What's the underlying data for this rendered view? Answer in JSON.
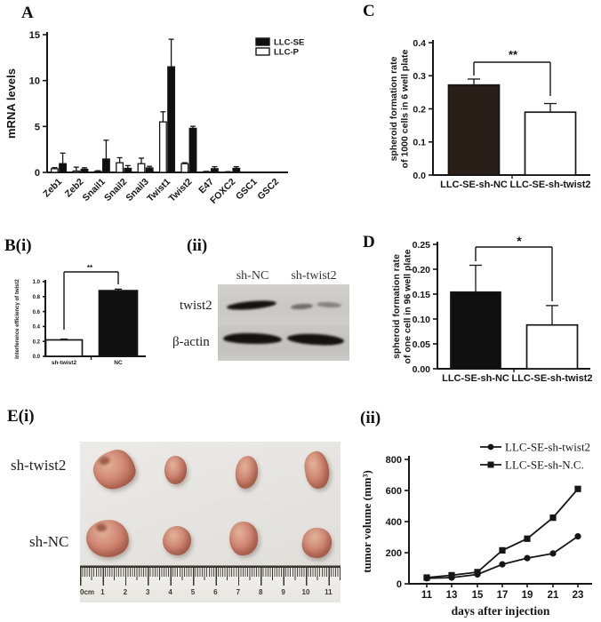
{
  "panels": {
    "A": {
      "label": "A"
    },
    "B_i": {
      "label": "B(i)"
    },
    "B_ii": {
      "label": "(ii)"
    },
    "C": {
      "label": "C"
    },
    "D": {
      "label": "D"
    },
    "E_i": {
      "label": "E(i)"
    },
    "E_ii": {
      "label": "(ii)"
    }
  },
  "colors": {
    "ink": "#161616",
    "dark_brown_bar": "#2a1e19",
    "blot_background": "#c9c8c4",
    "tumor_flesh": "#cf8773"
  },
  "blot": {
    "col_labels": [
      "sh-NC",
      "sh-twist2"
    ],
    "row_labels": [
      "twist2",
      "β-actin"
    ]
  },
  "photo": {
    "row_labels": [
      "sh-twist2",
      "sh-NC"
    ],
    "ruler_zero_label": "0cm",
    "ruler_numbers": [
      "1",
      "2",
      "3",
      "4",
      "5",
      "6",
      "7",
      "8",
      "9",
      "10",
      "11"
    ]
  },
  "chart_data": [
    {
      "id": "A",
      "type": "bar",
      "ylabel": "mRNA levels",
      "ylim": [
        0,
        15
      ],
      "yticks": [
        "0",
        "5",
        "10",
        "15"
      ],
      "categories": [
        "Zeb1",
        "Zeb2",
        "Snail1",
        "Snail2",
        "Snail3",
        "Twist1",
        "Twist2",
        "E47",
        "FOXC2",
        "GSC1",
        "GSC2"
      ],
      "series": [
        {
          "name": "LLC-P",
          "fill": "#ffffff",
          "values": [
            0.4,
            0.15,
            0.1,
            1.05,
            0.95,
            5.5,
            0.95,
            0.07,
            0.05,
            0,
            0
          ],
          "errors": [
            0.12,
            0.42,
            0.08,
            0.55,
            0.6,
            1.1,
            0.1,
            0.04,
            0.03,
            0,
            0
          ]
        },
        {
          "name": "LLC-SE",
          "fill": "#0f0f0f",
          "values": [
            0.95,
            0.34,
            1.45,
            0.44,
            0.48,
            11.5,
            4.8,
            0.4,
            0.44,
            0,
            0
          ],
          "errors": [
            1.15,
            0.16,
            2.05,
            0.3,
            0.18,
            3.0,
            0.22,
            0.22,
            0.18,
            0,
            0
          ]
        }
      ],
      "legend": [
        {
          "label": "LLC-SE",
          "fill": "#0f0f0f"
        },
        {
          "label": "LLC-P",
          "fill": "#ffffff"
        }
      ]
    },
    {
      "id": "B_i",
      "type": "bar",
      "ylabel": "Interference efficiency of twist2",
      "ylim": [
        0,
        1.0
      ],
      "yticks": [
        "0.0",
        "0.2",
        "0.4",
        "0.6",
        "0.8",
        "1.0"
      ],
      "categories": [
        "sh-twist2",
        "NC"
      ],
      "values": [
        0.22,
        0.88
      ],
      "errors": [
        0.01,
        0.02
      ],
      "fills": [
        "#ffffff",
        "#0f0f0f"
      ],
      "significance": "**"
    },
    {
      "id": "C",
      "type": "bar",
      "ylabel_lines": [
        "spheroid formation rate",
        "of 1000 cells in 6 well plate"
      ],
      "ylim": [
        0,
        0.4
      ],
      "yticks": [
        "0.0",
        "0.1",
        "0.2",
        "0.3",
        "0.4"
      ],
      "categories": [
        "LLC-SE-sh-NC",
        "LLC-SE-sh-twist2"
      ],
      "values": [
        0.272,
        0.19
      ],
      "errors": [
        0.018,
        0.026
      ],
      "fills": [
        "#2a1e19",
        "#ffffff"
      ],
      "significance": "**"
    },
    {
      "id": "D",
      "type": "bar",
      "ylabel_lines": [
        "spheroid formation rate",
        "of one cell in 96 well plate"
      ],
      "ylim": [
        0,
        0.25
      ],
      "yticks": [
        "0.00",
        "0.05",
        "0.10",
        "0.15",
        "0.20",
        "0.25"
      ],
      "categories": [
        "LLC-SE-sh-NC",
        "LLC-SE-sh-twist2"
      ],
      "values": [
        0.154,
        0.088
      ],
      "errors": [
        0.054,
        0.039
      ],
      "fills": [
        "#0f0f0f",
        "#ffffff"
      ],
      "significance": "*"
    },
    {
      "id": "E_ii",
      "type": "line",
      "xlabel": "days after injection",
      "ylabel": "tumor volume (mm³)",
      "ylim": [
        0,
        800
      ],
      "yticks": [
        "0",
        "200",
        "400",
        "600",
        "800"
      ],
      "x": [
        11,
        13,
        15,
        17,
        19,
        21,
        23
      ],
      "series": [
        {
          "name": "LLC-SE-sh-twist2",
          "marker": "circle",
          "values": [
            35,
            40,
            60,
            125,
            165,
            195,
            305
          ]
        },
        {
          "name": "LLC-SE-sh-N.C.",
          "marker": "square",
          "values": [
            40,
            55,
            75,
            215,
            290,
            425,
            610
          ]
        }
      ]
    }
  ]
}
